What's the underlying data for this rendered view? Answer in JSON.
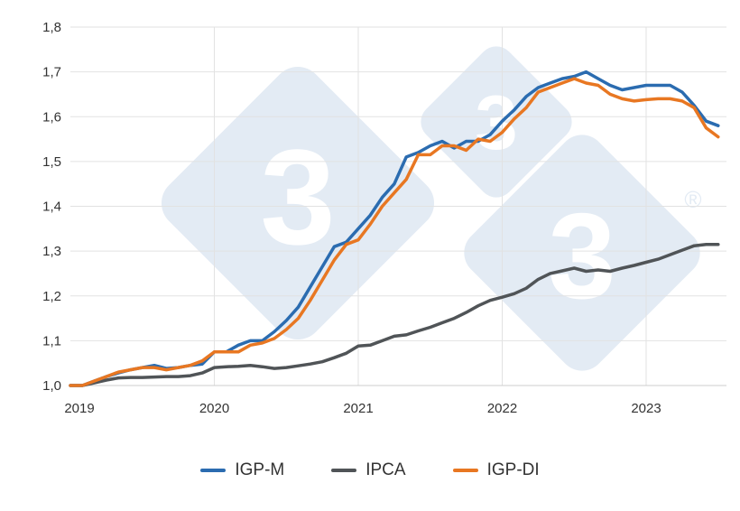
{
  "chart_data": {
    "type": "line",
    "title": "",
    "xlabel": "",
    "ylabel": "",
    "ylim": [
      1.0,
      1.8
    ],
    "yticks": [
      "1,0",
      "1,1",
      "1,2",
      "1,3",
      "1,4",
      "1,5",
      "1,6",
      "1,7",
      "1,8"
    ],
    "xticks": [
      "2019",
      "2020",
      "2021",
      "2022",
      "2023"
    ],
    "x_start": "2019-01",
    "x_frequency": "monthly",
    "grid": true,
    "legend_position": "bottom",
    "series": [
      {
        "name": "IGP-M",
        "color": "#2b6cb0",
        "values": [
          1.0,
          1.0,
          1.01,
          1.02,
          1.028,
          1.035,
          1.04,
          1.045,
          1.038,
          1.04,
          1.045,
          1.048,
          1.075,
          1.075,
          1.09,
          1.1,
          1.1,
          1.12,
          1.145,
          1.175,
          1.22,
          1.265,
          1.31,
          1.32,
          1.35,
          1.38,
          1.42,
          1.45,
          1.51,
          1.52,
          1.535,
          1.545,
          1.53,
          1.545,
          1.545,
          1.56,
          1.59,
          1.615,
          1.645,
          1.665,
          1.675,
          1.685,
          1.69,
          1.7,
          1.685,
          1.67,
          1.66,
          1.665,
          1.67,
          1.67,
          1.67,
          1.655,
          1.625,
          1.59,
          1.58
        ]
      },
      {
        "name": "IPCA",
        "color": "#505457",
        "values": [
          1.0,
          1.0,
          1.006,
          1.012,
          1.017,
          1.018,
          1.018,
          1.019,
          1.02,
          1.02,
          1.022,
          1.028,
          1.04,
          1.042,
          1.043,
          1.045,
          1.042,
          1.038,
          1.04,
          1.044,
          1.048,
          1.053,
          1.062,
          1.072,
          1.088,
          1.09,
          1.1,
          1.11,
          1.113,
          1.122,
          1.13,
          1.14,
          1.15,
          1.163,
          1.178,
          1.19,
          1.197,
          1.205,
          1.217,
          1.237,
          1.25,
          1.256,
          1.262,
          1.255,
          1.258,
          1.255,
          1.262,
          1.268,
          1.275,
          1.282,
          1.292,
          1.302,
          1.312,
          1.315,
          1.315
        ]
      },
      {
        "name": "IGP-DI",
        "color": "#e87722",
        "values": [
          1.0,
          1.0,
          1.01,
          1.02,
          1.03,
          1.035,
          1.04,
          1.04,
          1.035,
          1.04,
          1.045,
          1.055,
          1.075,
          1.075,
          1.075,
          1.09,
          1.095,
          1.105,
          1.125,
          1.15,
          1.19,
          1.235,
          1.28,
          1.315,
          1.325,
          1.36,
          1.4,
          1.43,
          1.46,
          1.515,
          1.515,
          1.535,
          1.535,
          1.525,
          1.55,
          1.545,
          1.565,
          1.595,
          1.62,
          1.655,
          1.665,
          1.675,
          1.685,
          1.675,
          1.67,
          1.65,
          1.64,
          1.635,
          1.638,
          1.64,
          1.64,
          1.635,
          1.62,
          1.575,
          1.555
        ]
      }
    ]
  }
}
